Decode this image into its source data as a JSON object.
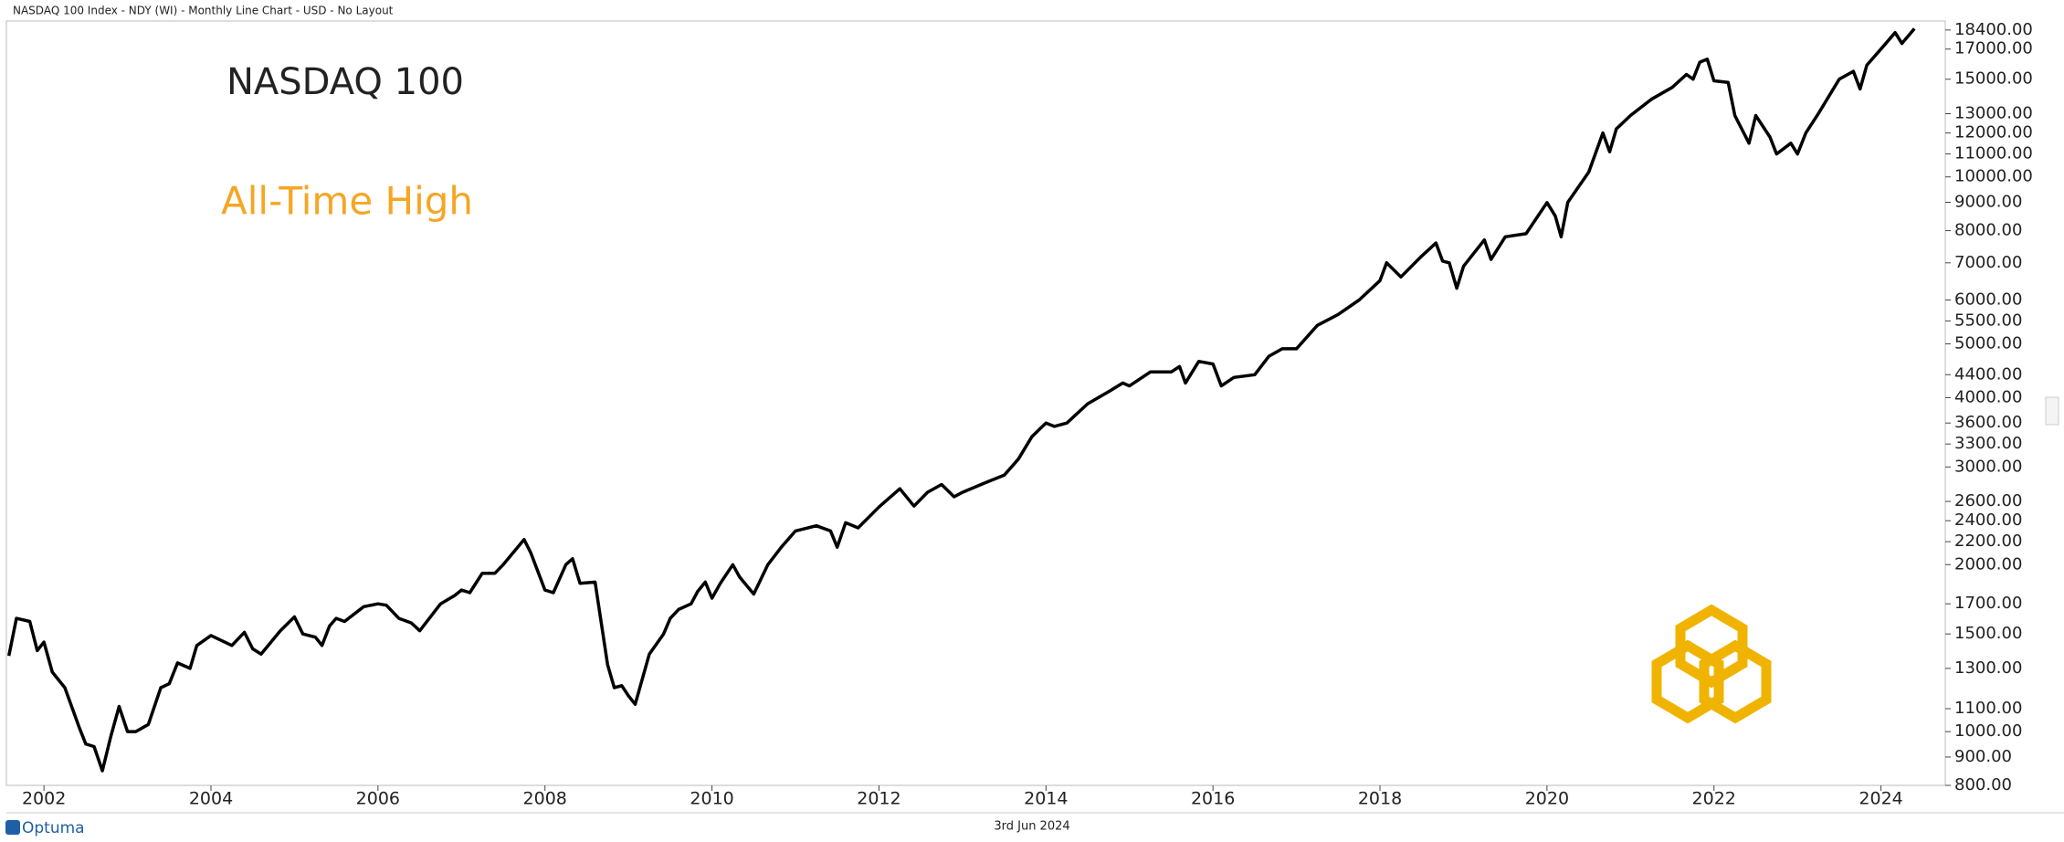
{
  "header": "NASDAQ 100 Index - NDY (WI) - Monthly Line Chart - USD - No Layout",
  "footer": {
    "brand": "Optuma",
    "date": "3rd Jun 2024"
  },
  "chart_data": {
    "type": "line",
    "title": "NASDAQ 100",
    "annotation": "All-Time High",
    "annotation_color": "#f5a623",
    "color": "#000000",
    "log_scale": true,
    "grid": false,
    "xlim": [
      2001.55,
      2024.77
    ],
    "xticks": [
      2002,
      2004,
      2006,
      2008,
      2010,
      2012,
      2014,
      2016,
      2018,
      2020,
      2022,
      2024
    ],
    "ylim": [
      800,
      19100
    ],
    "yticks": [
      {
        "value": 800,
        "label": "800.00"
      },
      {
        "value": 900,
        "label": "900.00"
      },
      {
        "value": 1000,
        "label": "1000.00"
      },
      {
        "value": 1100,
        "label": "1100.00"
      },
      {
        "value": 1300,
        "label": "1300.00"
      },
      {
        "value": 1500,
        "label": "1500.00"
      },
      {
        "value": 1700,
        "label": "1700.00"
      },
      {
        "value": 2000,
        "label": "2000.00"
      },
      {
        "value": 2200,
        "label": "2200.00"
      },
      {
        "value": 2400,
        "label": "2400.00"
      },
      {
        "value": 2600,
        "label": "2600.00"
      },
      {
        "value": 3000,
        "label": "3000.00"
      },
      {
        "value": 3300,
        "label": "3300.00"
      },
      {
        "value": 3600,
        "label": "3600.00"
      },
      {
        "value": 4000,
        "label": "4000.00"
      },
      {
        "value": 4400,
        "label": "4400.00"
      },
      {
        "value": 5000,
        "label": "5000.00"
      },
      {
        "value": 5500,
        "label": "5500.00"
      },
      {
        "value": 6000,
        "label": "6000.00"
      },
      {
        "value": 7000,
        "label": "7000.00"
      },
      {
        "value": 8000,
        "label": "8000.00"
      },
      {
        "value": 9000,
        "label": "9000.00"
      },
      {
        "value": 10000,
        "label": "10000.00"
      },
      {
        "value": 11000,
        "label": "11000.00"
      },
      {
        "value": 12000,
        "label": "12000.00"
      },
      {
        "value": 13000,
        "label": "13000.00"
      },
      {
        "value": 15000,
        "label": "15000.00"
      },
      {
        "value": 17000,
        "label": "17000.00"
      },
      {
        "value": 18400,
        "label": "18400.00"
      }
    ],
    "x": [
      2001.58,
      2001.67,
      2001.83,
      2001.92,
      2002.0,
      2002.1,
      2002.25,
      2002.42,
      2002.5,
      2002.6,
      2002.7,
      2002.8,
      2002.9,
      2003.0,
      2003.1,
      2003.25,
      2003.4,
      2003.5,
      2003.6,
      2003.75,
      2003.83,
      2004.0,
      2004.25,
      2004.4,
      2004.5,
      2004.6,
      2004.83,
      2005.0,
      2005.1,
      2005.25,
      2005.33,
      2005.42,
      2005.5,
      2005.6,
      2005.83,
      2006.0,
      2006.1,
      2006.25,
      2006.4,
      2006.5,
      2006.75,
      2006.92,
      2007.0,
      2007.1,
      2007.25,
      2007.4,
      2007.5,
      2007.75,
      2007.83,
      2008.0,
      2008.1,
      2008.25,
      2008.33,
      2008.42,
      2008.6,
      2008.75,
      2008.83,
      2008.92,
      2009.0,
      2009.08,
      2009.25,
      2009.42,
      2009.5,
      2009.6,
      2009.75,
      2009.83,
      2009.92,
      2010.0,
      2010.1,
      2010.25,
      2010.33,
      2010.5,
      2010.67,
      2010.83,
      2011.0,
      2011.25,
      2011.42,
      2011.5,
      2011.6,
      2011.75,
      2012.0,
      2012.25,
      2012.42,
      2012.58,
      2012.75,
      2012.9,
      2013.0,
      2013.25,
      2013.5,
      2013.67,
      2013.83,
      2014.0,
      2014.1,
      2014.25,
      2014.5,
      2014.75,
      2014.92,
      2015.0,
      2015.25,
      2015.5,
      2015.6,
      2015.67,
      2015.83,
      2016.0,
      2016.1,
      2016.25,
      2016.5,
      2016.67,
      2016.83,
      2017.0,
      2017.25,
      2017.5,
      2017.75,
      2018.0,
      2018.08,
      2018.25,
      2018.5,
      2018.67,
      2018.75,
      2018.83,
      2018.92,
      2019.0,
      2019.25,
      2019.33,
      2019.5,
      2019.75,
      2020.0,
      2020.1,
      2020.17,
      2020.25,
      2020.5,
      2020.67,
      2020.75,
      2020.83,
      2021.0,
      2021.25,
      2021.5,
      2021.67,
      2021.75,
      2021.83,
      2021.92,
      2022.0,
      2022.17,
      2022.25,
      2022.42,
      2022.5,
      2022.67,
      2022.75,
      2022.92,
      2023.0,
      2023.1,
      2023.25,
      2023.5,
      2023.67,
      2023.75,
      2023.83,
      2024.0,
      2024.17,
      2024.25,
      2024.4
    ],
    "values": [
      1370,
      1600,
      1580,
      1400,
      1450,
      1280,
      1200,
      1020,
      950,
      940,
      850,
      980,
      1110,
      1000,
      1000,
      1030,
      1200,
      1220,
      1330,
      1300,
      1430,
      1490,
      1430,
      1510,
      1410,
      1380,
      1520,
      1610,
      1500,
      1480,
      1430,
      1550,
      1600,
      1580,
      1680,
      1700,
      1690,
      1600,
      1570,
      1520,
      1700,
      1760,
      1800,
      1780,
      1930,
      1930,
      2000,
      2220,
      2100,
      1800,
      1780,
      2000,
      2050,
      1850,
      1860,
      1320,
      1200,
      1210,
      1160,
      1120,
      1380,
      1500,
      1600,
      1660,
      1700,
      1790,
      1860,
      1740,
      1850,
      2000,
      1900,
      1770,
      2000,
      2150,
      2300,
      2350,
      2300,
      2150,
      2380,
      2330,
      2540,
      2740,
      2550,
      2700,
      2790,
      2650,
      2700,
      2800,
      2900,
      3100,
      3400,
      3600,
      3550,
      3600,
      3900,
      4100,
      4250,
      4200,
      4450,
      4450,
      4550,
      4250,
      4650,
      4600,
      4200,
      4350,
      4400,
      4750,
      4900,
      4900,
      5400,
      5650,
      6000,
      6500,
      7000,
      6600,
      7200,
      7600,
      7050,
      7000,
      6300,
      6900,
      7700,
      7100,
      7800,
      7900,
      8990,
      8500,
      7800,
      9000,
      10200,
      12000,
      11100,
      12200,
      12900,
      13800,
      14500,
      15300,
      15000,
      16100,
      16300,
      14900,
      14800,
      12900,
      11500,
      12900,
      11800,
      11000,
      11500,
      11000,
      12000,
      13000,
      15000,
      15500,
      14400,
      15900,
      17000,
      18200,
      17400,
      18500
    ]
  }
}
